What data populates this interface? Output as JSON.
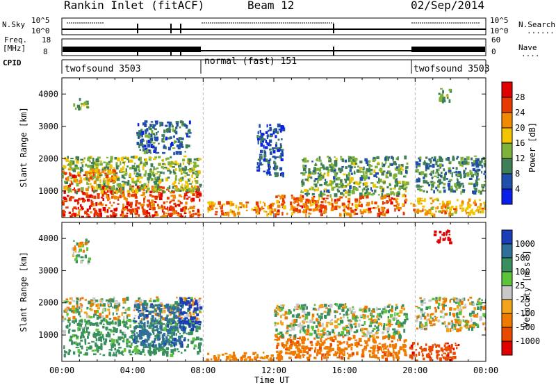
{
  "header": {
    "title": "Rankin Inlet (fitACF)",
    "beam": "Beam 12",
    "date": "02/Sep/2014"
  },
  "nsky_panel": {
    "left_label": "N.Sky",
    "right_label": "N.Search",
    "right_legend": "........",
    "left_ticks": [
      "10^5",
      "10^0"
    ],
    "right_ticks": [
      "10^5",
      "10^0"
    ]
  },
  "freq_panel": {
    "left_label_1": "Freq.",
    "left_label_2": "[MHz]",
    "right_label": "Nave",
    "right_legend": "....",
    "left_ticks": [
      "18",
      "8"
    ],
    "right_ticks": [
      "60",
      "0"
    ]
  },
  "cpid_panel": {
    "label": "CPID",
    "segments": [
      {
        "name": "twofsound 3503",
        "start": 0,
        "end": 8
      },
      {
        "name": "normal (fast) 151",
        "start": 8,
        "end": 20
      },
      {
        "name": "twofsound 3503",
        "start": 20,
        "end": 24
      }
    ]
  },
  "power_colorbar": {
    "title": "Power [dB]",
    "ticks": [
      "4",
      "8",
      "12",
      "16",
      "20",
      "24",
      "28"
    ],
    "colors": [
      "#0a1fe8",
      "#1f4fa8",
      "#3f7f57",
      "#7fb23a",
      "#f2c500",
      "#f08a00",
      "#e83a00",
      "#e00000"
    ]
  },
  "velocity_colorbar": {
    "title_1": "Velocity",
    "title_2": "[m s",
    "title_sup": "-1",
    "title_3": "]",
    "ticks": [
      "1000",
      "500",
      "100",
      "25",
      "-25",
      "-100",
      "-500",
      "-1000"
    ],
    "colors": [
      "#1a3db8",
      "#2f6f9a",
      "#3a8f5f",
      "#5cc33a",
      "#c8c8c8",
      "#f2a51a",
      "#f07a00",
      "#e84a00",
      "#e00000"
    ]
  },
  "x_axis": {
    "label": "Time UT",
    "ticks": [
      "00:00",
      "04:00",
      "08:00",
      "12:00",
      "16:00",
      "20:00",
      "00:00"
    ]
  },
  "chart_data": [
    {
      "type": "heatmap",
      "title": "",
      "xlabel": "",
      "ylabel": "Slant Range [km]",
      "xlim": [
        0,
        24
      ],
      "ylim": [
        180,
        4500
      ],
      "yticks": [
        "1000",
        "2000",
        "3000",
        "4000"
      ],
      "colorbar_label": "Power [dB]",
      "blobs": [
        {
          "x0": 0.0,
          "x1": 7.8,
          "y0": 200,
          "y1": 1200,
          "v": 26
        },
        {
          "x0": 0.0,
          "x1": 7.8,
          "y0": 1000,
          "y1": 2100,
          "v": 14
        },
        {
          "x0": 0.0,
          "x1": 3.0,
          "y0": 1300,
          "y1": 1700,
          "v": 24
        },
        {
          "x0": 0.6,
          "x1": 1.4,
          "y0": 3500,
          "y1": 3900,
          "v": 14
        },
        {
          "x0": 4.2,
          "x1": 7.2,
          "y0": 2200,
          "y1": 3200,
          "v": 8
        },
        {
          "x0": 8.2,
          "x1": 12.0,
          "y0": 300,
          "y1": 700,
          "v": 22
        },
        {
          "x0": 12.0,
          "x1": 19.5,
          "y0": 300,
          "y1": 900,
          "v": 24
        },
        {
          "x0": 13.5,
          "x1": 19.5,
          "y0": 900,
          "y1": 2100,
          "v": 12
        },
        {
          "x0": 19.7,
          "x1": 24.0,
          "y0": 300,
          "y1": 800,
          "v": 20
        },
        {
          "x0": 20.0,
          "x1": 24.0,
          "y0": 1000,
          "y1": 2100,
          "v": 10
        },
        {
          "x0": 21.2,
          "x1": 22.0,
          "y0": 3800,
          "y1": 4200,
          "v": 14
        },
        {
          "x0": 11.0,
          "x1": 12.5,
          "y0": 1500,
          "y1": 3100,
          "v": 6
        }
      ]
    },
    {
      "type": "heatmap",
      "title": "",
      "xlabel": "Time UT",
      "ylabel": "Slant Range [km]",
      "xlim": [
        0,
        24
      ],
      "ylim": [
        180,
        4500
      ],
      "yticks": [
        "1000",
        "2000",
        "3000",
        "4000"
      ],
      "colorbar_label": "Velocity [m s-1]",
      "blobs": [
        {
          "x0": 0.0,
          "x1": 7.8,
          "y0": 1500,
          "y1": 2200,
          "v": 0
        },
        {
          "x0": 0.0,
          "x1": 7.8,
          "y0": 400,
          "y1": 1500,
          "v": 150
        },
        {
          "x0": 4.0,
          "x1": 7.0,
          "y0": 700,
          "y1": 2000,
          "v": 600
        },
        {
          "x0": 6.6,
          "x1": 7.8,
          "y0": 1200,
          "y1": 2200,
          "v": 900
        },
        {
          "x0": 0.5,
          "x1": 1.5,
          "y0": 3300,
          "y1": 4000,
          "v": 0
        },
        {
          "x0": 8.0,
          "x1": 12.0,
          "y0": 200,
          "y1": 500,
          "v": -150
        },
        {
          "x0": 12.0,
          "x1": 19.5,
          "y0": 300,
          "y1": 1000,
          "v": -200
        },
        {
          "x0": 12.0,
          "x1": 19.5,
          "y0": 1000,
          "y1": 2000,
          "v": 40
        },
        {
          "x0": 19.6,
          "x1": 22.5,
          "y0": 200,
          "y1": 800,
          "v": -600
        },
        {
          "x0": 20.0,
          "x1": 24.0,
          "y0": 1200,
          "y1": 2200,
          "v": 0
        },
        {
          "x0": 21.0,
          "x1": 22.0,
          "y0": 3900,
          "y1": 4300,
          "v": -900
        }
      ]
    }
  ]
}
